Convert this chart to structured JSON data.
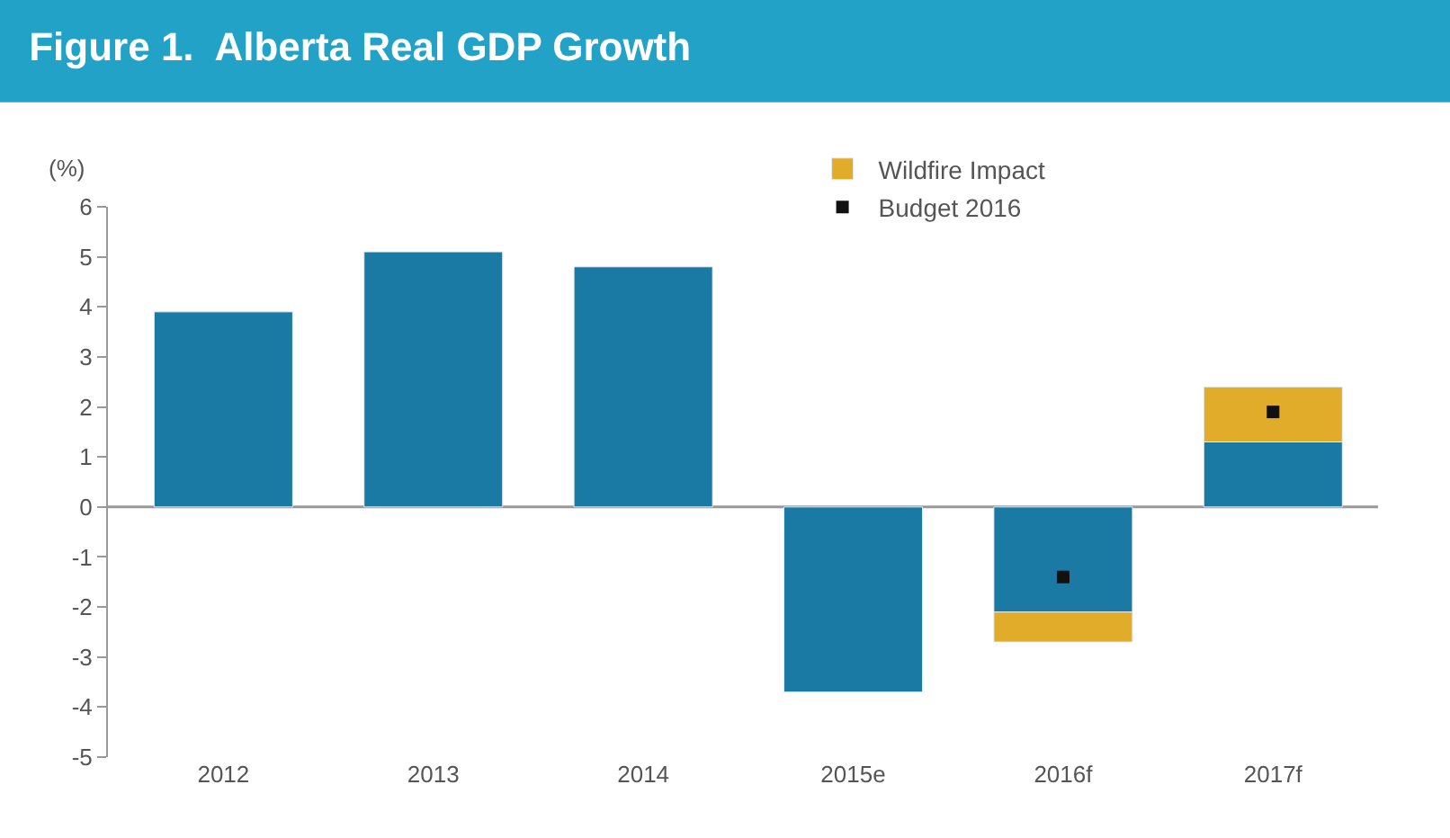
{
  "chart_data": {
    "type": "bar",
    "title": "Figure 1.  Alberta Real GDP Growth",
    "ylabel": "(%)",
    "categories": [
      "2012",
      "2013",
      "2014",
      "2015e",
      "2016f",
      "2017f"
    ],
    "stacked": true,
    "series": [
      {
        "color": "#1b7aa3",
        "values": [
          3.9,
          5.1,
          4.8,
          -3.7,
          -2.1,
          1.3
        ]
      },
      {
        "name": "Wildfire Impact",
        "color": "#e2ac2b",
        "values": [
          null,
          null,
          null,
          null,
          -0.6,
          1.1
        ]
      },
      {
        "name": "Budget 2016",
        "type": "scatter",
        "color": "#111111",
        "values": [
          null,
          null,
          null,
          null,
          -1.4,
          1.9
        ]
      }
    ],
    "ylim": [
      -5,
      6
    ],
    "yticks": [
      -5,
      -4,
      -3,
      -2,
      -1,
      0,
      1,
      2,
      3,
      4,
      5,
      6
    ],
    "legend": "top right"
  }
}
